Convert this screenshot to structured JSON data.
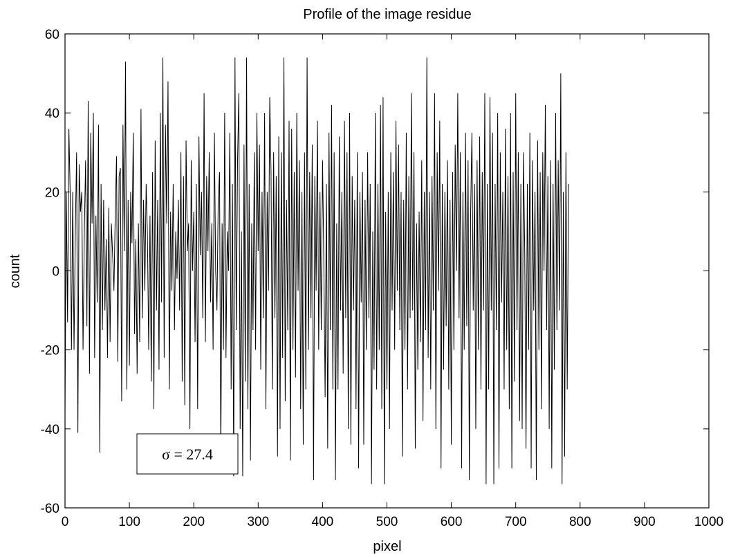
{
  "chart_data": {
    "type": "line",
    "title": "Profile of the image residue",
    "xlabel": "pixel",
    "ylabel": "count",
    "xlim": [
      0,
      1000
    ],
    "ylim": [
      -60,
      60
    ],
    "xticks": [
      0,
      100,
      200,
      300,
      400,
      500,
      600,
      700,
      800,
      900,
      1000
    ],
    "yticks": [
      -60,
      -40,
      -20,
      0,
      20,
      40,
      60
    ],
    "grid": false,
    "legend": "none",
    "line_color": "#000000",
    "annotation": {
      "text": "σ = 27.4",
      "placement": "lower-left"
    },
    "series": [
      {
        "x_start": 0,
        "x_step": 2,
        "values": [
          -36,
          20,
          -13,
          36,
          20,
          -20,
          20,
          -20,
          10,
          30,
          -41,
          27,
          15,
          20,
          -20,
          10,
          28,
          -14,
          43,
          -26,
          35,
          12,
          40,
          -22,
          14,
          -8,
          37,
          -46,
          22,
          -15,
          18,
          -10,
          8,
          -22,
          16,
          -18,
          12,
          4,
          -5,
          14,
          29,
          -23,
          24,
          26,
          -33,
          37,
          5,
          53,
          -30,
          18,
          -24,
          20,
          7,
          35,
          -16,
          8,
          -26,
          12,
          -18,
          41,
          -12,
          18,
          -5,
          22,
          9,
          -20,
          14,
          -28,
          25,
          -35,
          33,
          -10,
          18,
          -25,
          40,
          -8,
          54,
          -22,
          37,
          12,
          48,
          -30,
          15,
          -5,
          22,
          -15,
          10,
          -2,
          18,
          -10,
          30,
          -28,
          24,
          -34,
          33,
          5,
          12,
          -40,
          28,
          0,
          15,
          -18,
          22,
          -35,
          34,
          4,
          20,
          -12,
          45,
          -18,
          24,
          5,
          30,
          -8,
          12,
          -20,
          35,
          0,
          -10,
          18,
          25,
          -47,
          12,
          -20,
          40,
          -22,
          10,
          0,
          35,
          -30,
          22,
          -52,
          54,
          -15,
          28,
          45,
          -40,
          10,
          -52,
          32,
          -28,
          54,
          -35,
          22,
          -48,
          12,
          -15,
          30,
          -20,
          40,
          5,
          32,
          -25,
          20,
          -12,
          40,
          -35,
          20,
          -5,
          44,
          25,
          -30,
          30,
          -12,
          24,
          -47,
          34,
          -40,
          30,
          -22,
          54,
          -33,
          18,
          -15,
          38,
          -48,
          36,
          -20,
          25,
          -27,
          40,
          -5,
          28,
          -35,
          20,
          -44,
          30,
          -30,
          54,
          -20,
          25,
          -12,
          32,
          -53,
          24,
          -5,
          38,
          -20,
          20,
          -15,
          28,
          2,
          -32,
          22,
          -45,
          35,
          -15,
          42,
          -30,
          30,
          -53,
          12,
          -30,
          34,
          -10,
          20,
          -26,
          38,
          -12,
          30,
          -40,
          40,
          -44,
          24,
          -10,
          18,
          -35,
          30,
          -50,
          20,
          -8,
          25,
          -44,
          18,
          -20,
          30,
          -12,
          22,
          -54,
          10,
          -25,
          40,
          -30,
          22,
          -20,
          42,
          -35,
          44,
          -54,
          15,
          -30,
          20,
          -40,
          30,
          -10,
          25,
          -20,
          38,
          -5,
          32,
          -15,
          20,
          -47,
          18,
          -20,
          35,
          -30,
          24,
          -12,
          45,
          -10,
          30,
          -45,
          12,
          -25,
          15,
          -18,
          28,
          -38,
          20,
          -15,
          54,
          -22,
          20,
          -30,
          24,
          -10,
          45,
          -40,
          30,
          -5,
          38,
          -50,
          22,
          -25,
          20,
          -14,
          28,
          -30,
          18,
          -44,
          25,
          -20,
          32,
          0,
          45,
          -12,
          30,
          -50,
          20,
          -20,
          35,
          -14,
          28,
          -53,
          15,
          35,
          -10,
          22,
          -40,
          28,
          -20,
          34,
          -30,
          25,
          -10,
          45,
          -54,
          22,
          -30,
          44,
          -10,
          35,
          -54,
          22,
          -15,
          40,
          -50,
          30,
          -8,
          20,
          -30,
          36,
          -20,
          24,
          -35,
          40,
          -50,
          25,
          -28,
          45,
          -15,
          30,
          -38,
          22,
          -40,
          30,
          5,
          -45,
          22,
          -20,
          35,
          -50,
          28,
          -10,
          20,
          -53,
          33,
          -20,
          25,
          -35,
          30,
          0,
          42,
          -15,
          24,
          -40,
          28,
          -50,
          22,
          -25,
          40,
          -15,
          28,
          -10,
          50,
          -54,
          20,
          -47,
          30,
          -30,
          22
        ]
      }
    ]
  }
}
